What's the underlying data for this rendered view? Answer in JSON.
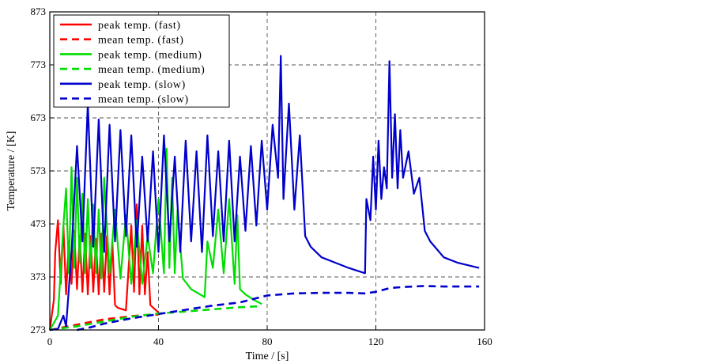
{
  "chart_data": {
    "type": "line",
    "xlabel": "Time / [s]",
    "ylabel": "Temperature / [K]",
    "xlim": [
      0,
      160
    ],
    "ylim": [
      273,
      873
    ],
    "x_ticks": [
      0,
      40,
      80,
      120,
      160
    ],
    "y_ticks": [
      273,
      373,
      473,
      573,
      673,
      773,
      873
    ],
    "grid": true,
    "legend_position": "top-left",
    "series": [
      {
        "name": "peak temp. (fast)",
        "color": "#ff0000",
        "dash": "solid",
        "x": [
          0,
          1.5,
          2,
          3,
          4,
          5,
          6,
          7,
          8,
          9,
          10,
          11,
          12,
          13,
          14,
          15,
          16,
          17,
          18,
          19,
          20,
          21,
          22,
          23,
          24,
          25,
          28,
          30,
          31,
          32,
          33,
          34,
          35,
          36,
          37,
          40
        ],
        "y": [
          273,
          330,
          420,
          480,
          360,
          470,
          340,
          440,
          360,
          460,
          350,
          450,
          345,
          455,
          340,
          450,
          345,
          445,
          340,
          455,
          345,
          450,
          340,
          440,
          320,
          315,
          310,
          470,
          345,
          510,
          340,
          470,
          340,
          420,
          320,
          306
        ]
      },
      {
        "name": "mean temp. (fast)",
        "color": "#ff0000",
        "dash": "dashed",
        "x": [
          0,
          5,
          10,
          15,
          20,
          25,
          30,
          35,
          40
        ],
        "y": [
          273,
          278,
          283,
          288,
          293,
          296,
          299,
          301,
          302
        ]
      },
      {
        "name": "peak temp. (medium)",
        "color": "#00dd00",
        "dash": "solid",
        "x": [
          0,
          3,
          5,
          6,
          7,
          8,
          9,
          10,
          11,
          12,
          13,
          14,
          15,
          16,
          17,
          18,
          19,
          20,
          22,
          24,
          26,
          28,
          30,
          32,
          34,
          36,
          38,
          40,
          42,
          43,
          44,
          45,
          46,
          47,
          49,
          52,
          57,
          58,
          60,
          62,
          64,
          66,
          68,
          69,
          70,
          72,
          75,
          78
        ],
        "y": [
          273,
          300,
          470,
          540,
          380,
          580,
          390,
          560,
          400,
          530,
          380,
          520,
          390,
          510,
          380,
          500,
          370,
          560,
          380,
          500,
          370,
          490,
          360,
          480,
          360,
          450,
          380,
          520,
          380,
          615,
          390,
          560,
          380,
          500,
          370,
          350,
          335,
          440,
          390,
          500,
          380,
          520,
          360,
          490,
          350,
          340,
          330,
          322
        ]
      },
      {
        "name": "mean temp. (medium)",
        "color": "#00dd00",
        "dash": "dashed",
        "x": [
          0,
          10,
          20,
          30,
          40,
          50,
          60,
          70,
          78
        ],
        "y": [
          273,
          280,
          289,
          298,
          304,
          308,
          312,
          316,
          318
        ]
      },
      {
        "name": "peak temp. (slow)",
        "color": "#0000cc",
        "dash": "solid",
        "x": [
          0,
          3,
          5,
          6,
          8,
          10,
          12,
          14,
          16,
          18,
          20,
          22,
          24,
          26,
          28,
          30,
          32,
          34,
          36,
          38,
          40,
          42,
          44,
          46,
          48,
          50,
          52,
          54,
          56,
          58,
          60,
          62,
          64,
          66,
          68,
          70,
          72,
          74,
          76,
          78,
          80,
          82,
          84,
          85,
          86,
          88,
          90,
          92,
          94,
          96,
          100,
          105,
          110,
          116,
          116.5,
          118,
          119,
          120,
          121,
          122,
          123,
          124,
          125,
          126,
          127,
          128,
          129,
          130,
          132,
          134,
          136,
          138,
          140,
          145,
          150,
          158
        ],
        "y": [
          273,
          275,
          300,
          280,
          420,
          620,
          440,
          700,
          430,
          670,
          420,
          660,
          440,
          650,
          450,
          640,
          430,
          600,
          440,
          610,
          420,
          640,
          440,
          600,
          420,
          630,
          440,
          610,
          420,
          640,
          450,
          610,
          440,
          630,
          440,
          600,
          460,
          620,
          470,
          630,
          500,
          660,
          560,
          790,
          520,
          700,
          500,
          640,
          450,
          430,
          410,
          400,
          390,
          380,
          520,
          480,
          600,
          500,
          630,
          520,
          580,
          540,
          780,
          560,
          680,
          540,
          650,
          560,
          610,
          530,
          560,
          460,
          440,
          410,
          400,
          390
        ]
      },
      {
        "name": "mean temp. (slow)",
        "color": "#0000cc",
        "dash": "dashed",
        "x": [
          10,
          15,
          20,
          30,
          40,
          50,
          60,
          70,
          80,
          90,
          100,
          110,
          116,
          120,
          125,
          130,
          138,
          145,
          158
        ],
        "y": [
          273,
          278,
          285,
          295,
          303,
          311,
          319,
          325,
          338,
          342,
          343,
          343,
          342,
          345,
          352,
          354,
          356,
          355,
          355
        ]
      }
    ]
  }
}
